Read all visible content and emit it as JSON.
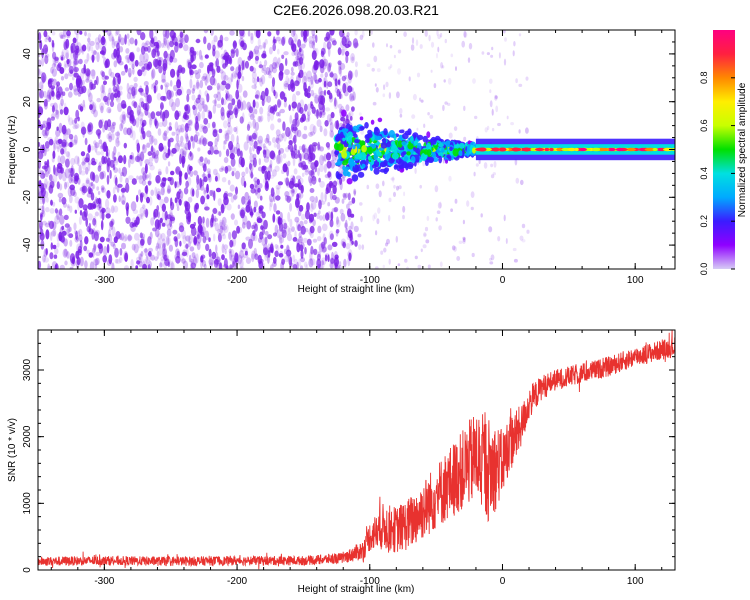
{
  "title": "C2E6.2026.098.20.03.R21",
  "colors": {
    "signal": "#e8322f",
    "dots": "#7a1fe6",
    "frame": "#000000",
    "colorbar": [
      "#d7ccf5",
      "#8f00ff",
      "#3b1cff",
      "#00aaff",
      "#00e0e0",
      "#00e000",
      "#c8ff00",
      "#ffee00",
      "#ff8800",
      "#ff2040",
      "#ff0080"
    ]
  },
  "chart_data": [
    {
      "type": "heatmap",
      "title": "C2E6.2026.098.20.03.R21",
      "xlabel": "Height of straight line (km)",
      "ylabel": "Frequency (Hz)",
      "xlim": [
        -350,
        130
      ],
      "ylim": [
        -50,
        50
      ],
      "xticks": [
        -300,
        -200,
        -100,
        0,
        100
      ],
      "xtick_labels": [
        "-300",
        "-200",
        "-100",
        "0",
        "100"
      ],
      "yticks": [
        -40,
        -20,
        0,
        20,
        40
      ],
      "ytick_labels": [
        "-40",
        "-20",
        "0",
        "20",
        "40"
      ],
      "colorbar": {
        "label": "Normalized spectral amplitude",
        "range": [
          0,
          1
        ],
        "ticks": [
          0,
          0.2,
          0.4,
          0.6,
          0.8
        ],
        "tick_labels": [
          "0.0",
          "0.2",
          "0.4",
          "0.6",
          "0.8"
        ]
      },
      "regions": [
        {
          "name": "noise",
          "x": [
            -350,
            -110
          ],
          "y": [
            -50,
            50
          ],
          "level": 0.1
        },
        {
          "name": "turbulent-signal",
          "x": [
            -125,
            -20
          ],
          "y": [
            -15,
            15
          ],
          "level": 0.4
        },
        {
          "name": "steady-carrier",
          "x": [
            -20,
            130
          ],
          "y": [
            -2,
            2
          ],
          "level": 0.7
        }
      ]
    },
    {
      "type": "line",
      "xlabel": "Height of straight line (km)",
      "ylabel": "SNR (10 * v/v)",
      "xlim": [
        -350,
        130
      ],
      "ylim": [
        0,
        3600
      ],
      "xticks": [
        -300,
        -200,
        -100,
        0,
        100
      ],
      "xtick_labels": [
        "-300",
        "-200",
        "-100",
        "0",
        "100"
      ],
      "yticks": [
        0,
        1000,
        2000,
        3000
      ],
      "ytick_labels": [
        "0",
        "1000",
        "2000",
        "3000"
      ],
      "series": [
        {
          "name": "SNR",
          "x": [
            -350,
            -300,
            -250,
            -200,
            -150,
            -120,
            -105,
            -100,
            -90,
            -80,
            -70,
            -60,
            -50,
            -40,
            -30,
            -20,
            -10,
            0,
            5,
            10,
            15,
            20,
            30,
            40,
            60,
            80,
            100,
            130
          ],
          "y": [
            130,
            140,
            130,
            140,
            140,
            180,
            300,
            500,
            650,
            600,
            700,
            900,
            1100,
            1300,
            1500,
            1700,
            1500,
            1600,
            1900,
            2000,
            2200,
            2500,
            2750,
            2850,
            2950,
            3050,
            3200,
            3350
          ],
          "noise": [
            70,
            70,
            70,
            70,
            70,
            80,
            150,
            220,
            350,
            350,
            400,
            450,
            500,
            550,
            600,
            700,
            800,
            500,
            450,
            400,
            300,
            250,
            180,
            160,
            150,
            150,
            150,
            150
          ]
        }
      ]
    }
  ]
}
